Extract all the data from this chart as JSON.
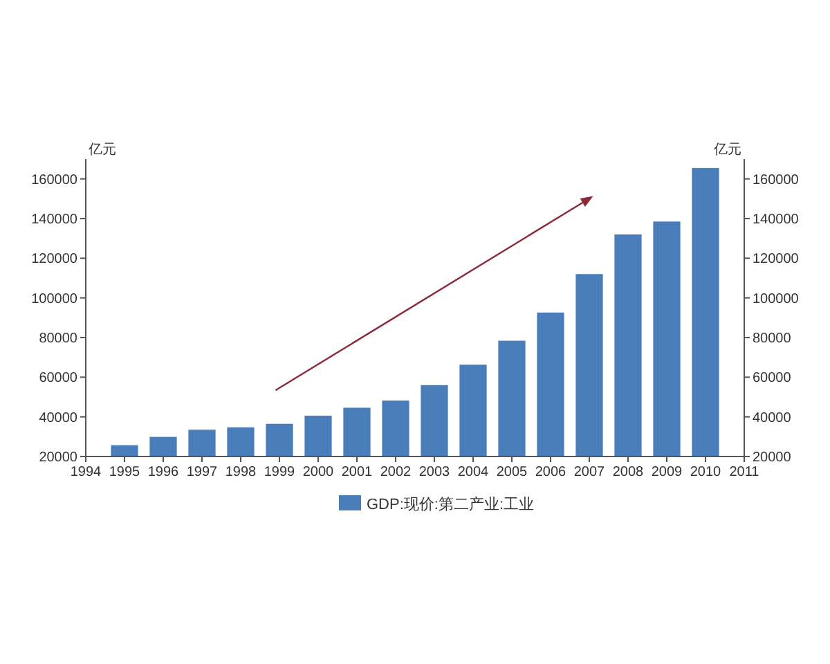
{
  "chart_data": {
    "type": "bar",
    "x": [
      1995,
      1996,
      1997,
      1998,
      1999,
      2000,
      2001,
      2002,
      2003,
      2004,
      2005,
      2006,
      2007,
      2008,
      2009,
      2010
    ],
    "series": [
      {
        "name": "GDP:现价:第二产业:工业",
        "color": "#4a7ebb",
        "values": [
          25700,
          29900,
          33500,
          34700,
          36500,
          40600,
          44600,
          48200,
          56000,
          66300,
          78400,
          92600,
          112000,
          132000,
          138500,
          165500
        ]
      }
    ],
    "xlim": [
      1994,
      2011
    ],
    "xticks": [
      1994,
      1995,
      1996,
      1997,
      1998,
      1999,
      2000,
      2001,
      2002,
      2003,
      2004,
      2005,
      2006,
      2007,
      2008,
      2009,
      2010,
      2011
    ],
    "ylim": [
      20000,
      170000
    ],
    "yticks": [
      20000,
      40000,
      60000,
      80000,
      100000,
      120000,
      140000,
      160000
    ],
    "y2lim": [
      20000,
      170000
    ],
    "y2ticks": [
      20000,
      40000,
      60000,
      80000,
      100000,
      120000,
      140000,
      160000
    ],
    "ylabel": "亿元",
    "y2label": "亿元",
    "legend": "bottom"
  }
}
